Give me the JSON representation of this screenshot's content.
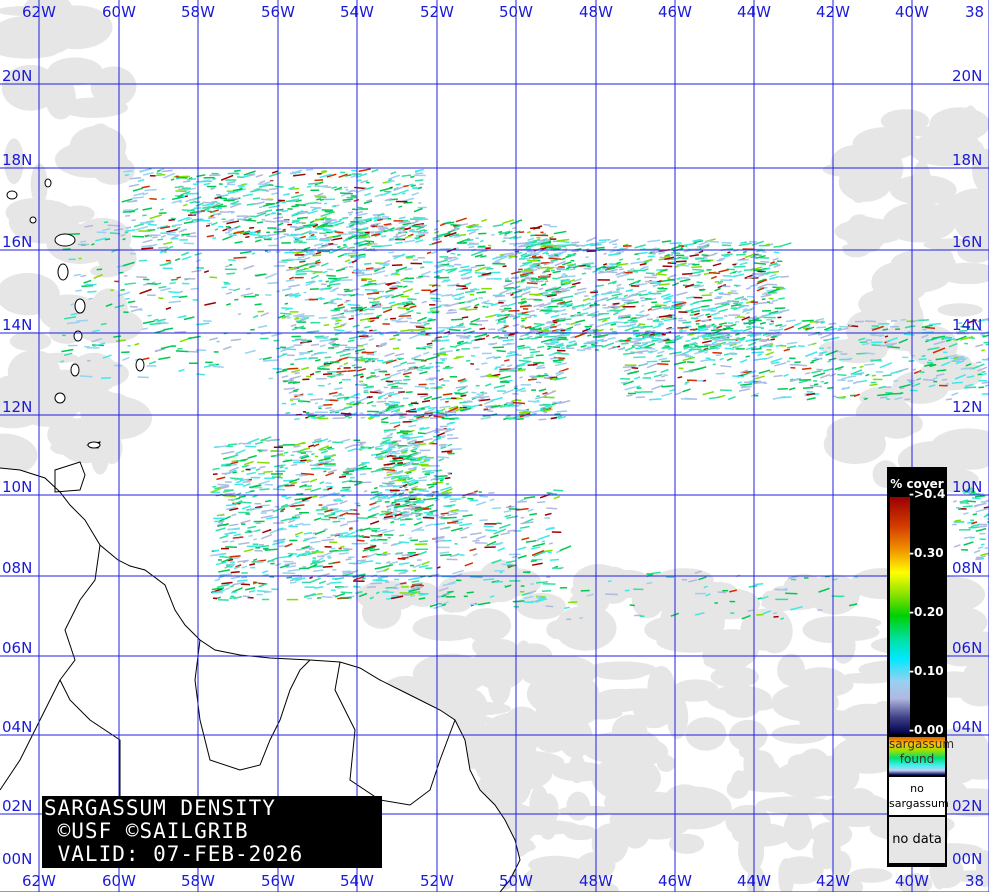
{
  "title": {
    "line1": "SARGASSUM DENSITY",
    "line2": " ©USF ©SAILGRIB",
    "line3": " VALID: 07-FEB-2026"
  },
  "map": {
    "longitude_labels": [
      "62W",
      "60W",
      "58W",
      "56W",
      "54W",
      "52W",
      "50W",
      "48W",
      "46W",
      "44W",
      "42W",
      "40W",
      "38"
    ],
    "latitude_labels": [
      "20N",
      "18N",
      "16N",
      "14N",
      "12N",
      "10N",
      "08N",
      "06N",
      "04N",
      "02N",
      "00N"
    ],
    "grid_color": "#2020e0",
    "land_color": "#ffffff",
    "no_data_color": "#e6e6e6"
  },
  "legend": {
    "title": "% cover",
    "ticks": [
      "->0.4",
      "-0.30",
      "-0.20",
      "-0.10",
      "-0.00"
    ],
    "found_label": "sargassum found",
    "no_sargassum_label": "no sargassum",
    "no_data_label": "no data"
  }
}
